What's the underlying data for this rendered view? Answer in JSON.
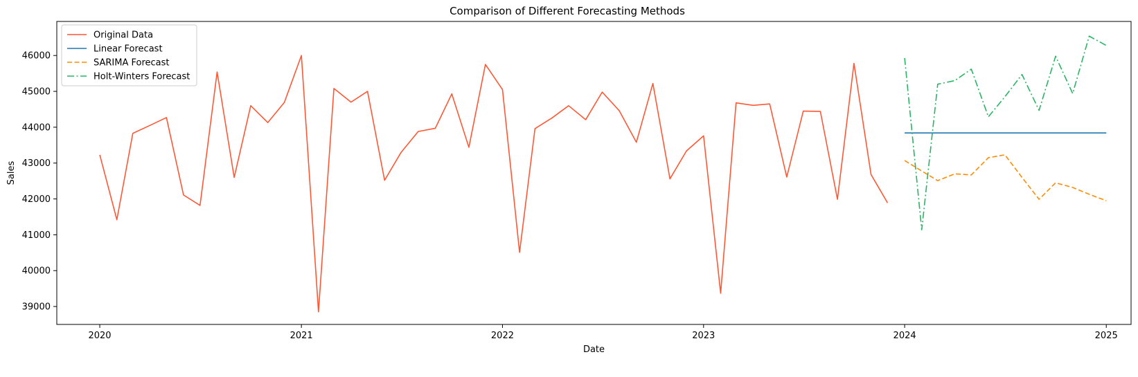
{
  "chart_data": {
    "type": "line",
    "title": "Comparison of Different Forecasting Methods",
    "xlabel": "Date",
    "ylabel": "Sales",
    "xlim": [
      "2019-10-15",
      "2025-02-15"
    ],
    "ylim": [
      38500,
      46950
    ],
    "grid": false,
    "legend_position": "upper-left",
    "x_ticks": [
      {
        "date": "2020-01-01",
        "label": "2020"
      },
      {
        "date": "2021-01-01",
        "label": "2021"
      },
      {
        "date": "2022-01-01",
        "label": "2022"
      },
      {
        "date": "2023-01-01",
        "label": "2023"
      },
      {
        "date": "2024-01-01",
        "label": "2024"
      },
      {
        "date": "2025-01-01",
        "label": "2025"
      }
    ],
    "y_ticks": [
      39000,
      40000,
      41000,
      42000,
      43000,
      44000,
      45000,
      46000
    ],
    "series": [
      {
        "name": "Original Data",
        "color": "#ff5733",
        "dash": "solid",
        "x": [
          "2020-01-01",
          "2020-02-01",
          "2020-03-01",
          "2020-04-01",
          "2020-05-01",
          "2020-06-01",
          "2020-07-01",
          "2020-08-01",
          "2020-09-01",
          "2020-10-01",
          "2020-11-01",
          "2020-12-01",
          "2021-01-01",
          "2021-02-01",
          "2021-03-01",
          "2021-04-01",
          "2021-05-01",
          "2021-06-01",
          "2021-07-01",
          "2021-08-01",
          "2021-09-01",
          "2021-10-01",
          "2021-11-01",
          "2021-12-01",
          "2022-01-01",
          "2022-02-01",
          "2022-03-01",
          "2022-04-01",
          "2022-05-01",
          "2022-06-01",
          "2022-07-01",
          "2022-08-01",
          "2022-09-01",
          "2022-10-01",
          "2022-11-01",
          "2022-12-01",
          "2023-01-01",
          "2023-02-01",
          "2023-03-01",
          "2023-04-01",
          "2023-05-01",
          "2023-06-01",
          "2023-07-01",
          "2023-08-01",
          "2023-09-01",
          "2023-10-01",
          "2023-11-01",
          "2023-12-01"
        ],
        "y": [
          43230,
          41420,
          43830,
          44050,
          44270,
          42110,
          41820,
          45540,
          42600,
          44600,
          44130,
          44690,
          46000,
          38850,
          45080,
          44700,
          45000,
          42520,
          43300,
          43880,
          43970,
          44930,
          43440,
          45750,
          45050,
          40510,
          43960,
          44260,
          44600,
          44210,
          44980,
          44460,
          43580,
          45220,
          42560,
          43340,
          43760,
          39370,
          44680,
          44610,
          44650,
          42610,
          44450,
          44440,
          41990,
          45780,
          42680,
          41890
        ]
      },
      {
        "name": "Linear Forecast",
        "color": "#1f77b4",
        "dash": "solid",
        "x": [
          "2024-01-01",
          "2025-01-01"
        ],
        "y": [
          43840,
          43840
        ]
      },
      {
        "name": "SARIMA Forecast",
        "color": "#ff8c00",
        "dash": "dashed",
        "x": [
          "2024-01-01",
          "2024-02-01",
          "2024-03-01",
          "2024-04-01",
          "2024-05-01",
          "2024-06-01",
          "2024-07-01",
          "2024-08-01",
          "2024-09-01",
          "2024-10-01",
          "2024-11-01",
          "2024-12-01",
          "2025-01-01"
        ],
        "y": [
          43070,
          42780,
          42510,
          42700,
          42670,
          43150,
          43230,
          42600,
          41990,
          42450,
          42320,
          42130,
          41950
        ]
      },
      {
        "name": "Holt-Winters Forecast",
        "color": "#28b463",
        "dash": "dashdot",
        "x": [
          "2024-01-01",
          "2024-02-01",
          "2024-03-01",
          "2024-04-01",
          "2024-05-01",
          "2024-06-01",
          "2024-07-01",
          "2024-08-01",
          "2024-09-01",
          "2024-10-01",
          "2024-11-01",
          "2024-12-01",
          "2025-01-01"
        ],
        "y": [
          45930,
          41140,
          45200,
          45300,
          45620,
          44290,
          44850,
          45470,
          44470,
          45980,
          44940,
          46540,
          46280
        ]
      }
    ]
  }
}
